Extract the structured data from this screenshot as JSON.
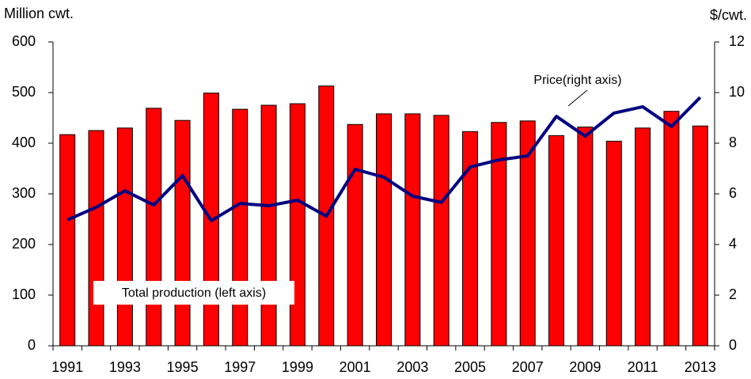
{
  "chart_data": {
    "type": "bar-line",
    "y_label": "Million cwt.",
    "y2_label": "$/cwt.",
    "categories": [
      "1991",
      null,
      "1993",
      null,
      "1995",
      null,
      "1997",
      null,
      "1999",
      null,
      "2001",
      null,
      "2003",
      null,
      "2005",
      null,
      "2007",
      null,
      "2009",
      null,
      "2011",
      null,
      "2013"
    ],
    "series": [
      {
        "name": "Total production (left axis)",
        "type": "bar",
        "color": "#ff0000",
        "values": [
          417,
          425,
          430,
          469,
          445,
          499,
          467,
          475,
          478,
          513,
          437,
          458,
          458,
          455,
          423,
          441,
          444,
          415,
          432,
          404,
          430,
          463,
          434
        ]
      },
      {
        "name": "Price(right axis)",
        "type": "line",
        "color": "#000080",
        "axis": "y2",
        "values": [
          4.97,
          5.47,
          6.12,
          5.56,
          6.72,
          4.94,
          5.62,
          5.53,
          5.75,
          5.12,
          6.97,
          6.66,
          5.91,
          5.66,
          7.06,
          7.34,
          7.5,
          9.06,
          8.28,
          9.19,
          9.44,
          8.66,
          9.81
        ]
      }
    ],
    "ylim": [
      0,
      600
    ],
    "yticks": [
      0,
      100,
      200,
      300,
      400,
      500,
      600
    ],
    "y2lim": [
      0,
      12
    ],
    "y2ticks": [
      0,
      2,
      4,
      6,
      8,
      10,
      12
    ],
    "grid": false
  }
}
